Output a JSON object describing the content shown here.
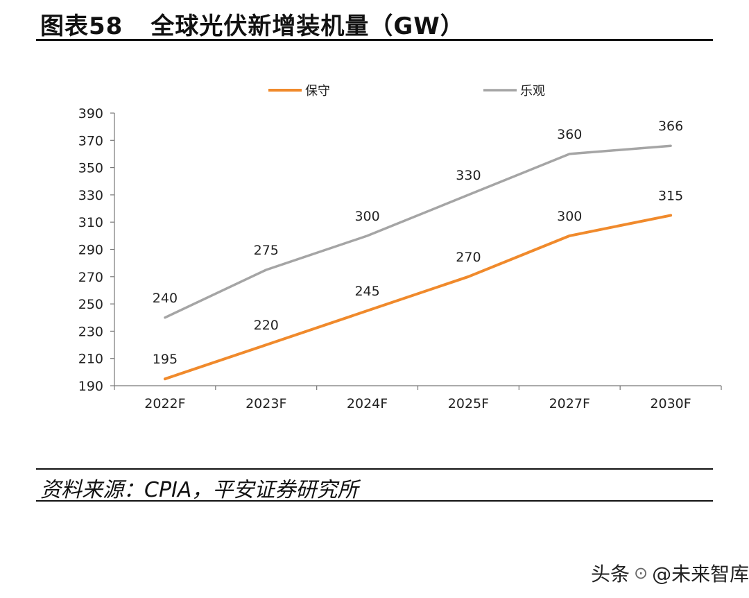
{
  "header": {
    "figure_number": "图表58",
    "title": "全球光伏新增装机量（GW）"
  },
  "chart_data": {
    "type": "line",
    "title": "全球光伏新增装机量（GW）",
    "categories": [
      "2022F",
      "2023F",
      "2024F",
      "2025F",
      "2027F",
      "2030F"
    ],
    "series": [
      {
        "name": "保守",
        "color": "#f08a2c",
        "values": [
          195,
          220,
          245,
          270,
          300,
          315
        ]
      },
      {
        "name": "乐观",
        "color": "#a5a5a5",
        "values": [
          240,
          275,
          300,
          330,
          360,
          366
        ]
      }
    ],
    "ylim": [
      190,
      390
    ],
    "yticks": [
      190,
      210,
      230,
      250,
      270,
      290,
      310,
      330,
      350,
      370,
      390
    ],
    "xlabel": "",
    "ylabel": "",
    "legend": "top",
    "grid": false
  },
  "footer": {
    "source": "资料来源：CPIA，平安证券研究所",
    "watermark_left": "头条",
    "watermark_right": "@未来智库"
  }
}
